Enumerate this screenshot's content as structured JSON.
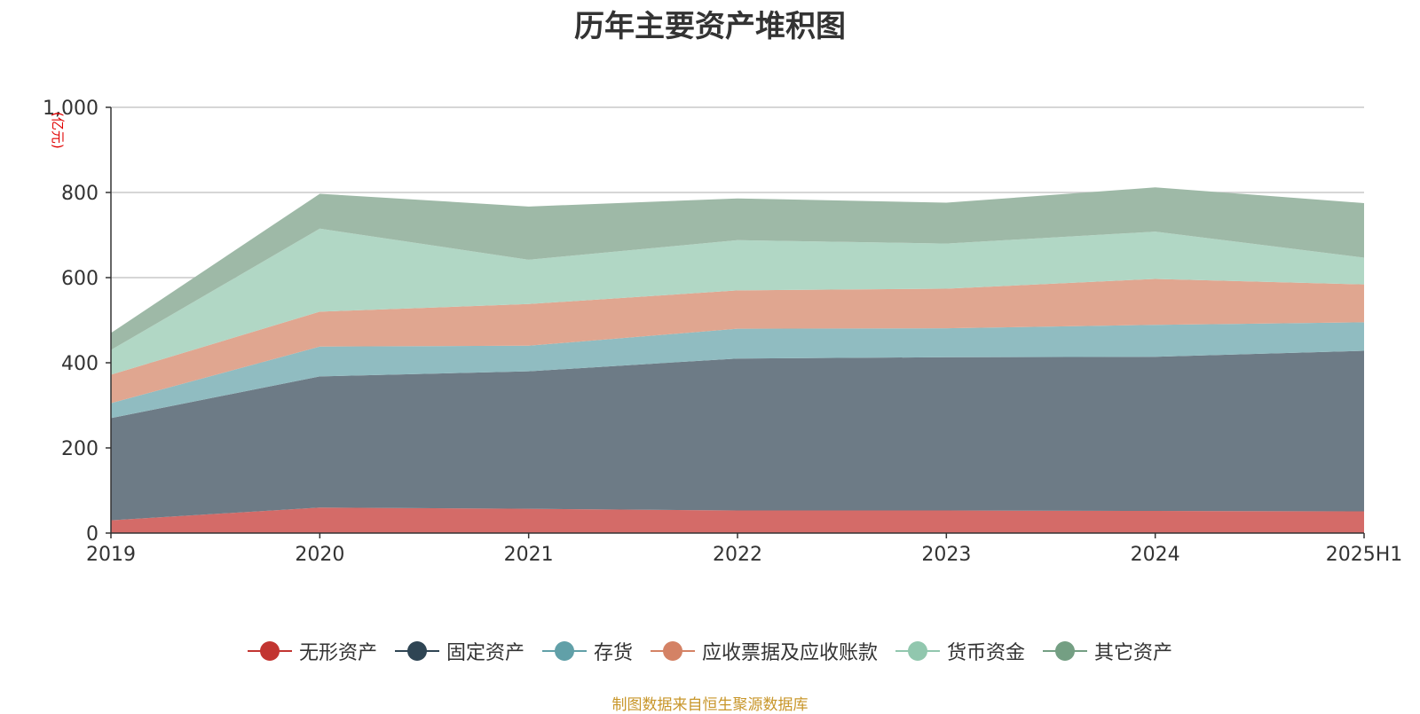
{
  "chart_data": {
    "type": "area",
    "title": "历年主要资产堆积图",
    "unit_label": "(亿元)",
    "categories": [
      "2019",
      "2020",
      "2021",
      "2022",
      "2023",
      "2024",
      "2025H1"
    ],
    "ylim": [
      0,
      1000
    ],
    "y_ticks": [
      "0",
      "200",
      "400",
      "600",
      "800",
      "1,000"
    ],
    "y_tick_values": [
      0,
      200,
      400,
      600,
      800,
      1000
    ],
    "stacked": true,
    "grid": true,
    "legend_position": "bottom",
    "series": [
      {
        "name": "无形资产",
        "color": "#c23531",
        "fill": "#d46b68",
        "values": [
          30,
          60,
          57,
          53,
          53,
          52,
          51
        ]
      },
      {
        "name": "固定资产",
        "color": "#2f4554",
        "fill": "#6d7b86",
        "values": [
          240,
          308,
          323,
          357,
          360,
          362,
          377
        ]
      },
      {
        "name": "存货",
        "color": "#61a0a8",
        "fill": "#90bcc1",
        "values": [
          35,
          70,
          60,
          70,
          68,
          75,
          67
        ]
      },
      {
        "name": "应收票据及应收账款",
        "color": "#d48265",
        "fill": "#e0a690",
        "values": [
          67,
          82,
          98,
          90,
          93,
          108,
          89
        ]
      },
      {
        "name": "货币资金",
        "color": "#91c7ae",
        "fill": "#b1d7c5",
        "values": [
          58,
          195,
          104,
          118,
          106,
          111,
          63
        ]
      },
      {
        "name": "其它资产",
        "color": "#749f83",
        "fill": "#9eb9a7",
        "values": [
          40,
          82,
          125,
          98,
          96,
          104,
          128
        ]
      }
    ]
  },
  "footer": {
    "source": "制图数据来自恒生聚源数据库"
  }
}
